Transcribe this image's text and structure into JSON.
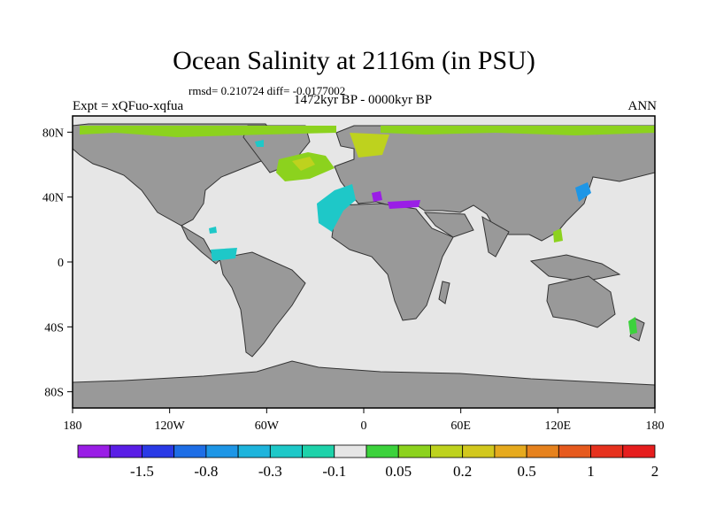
{
  "header": {
    "title": "Ocean Salinity at 2116m (in PSU)",
    "stats": "rmsd= 0.210724 diff= -0.0177002",
    "period": "1472kyr BP - 0000kyr BP",
    "experiment": "Expt = xQFuo-xqfua",
    "season": "ANN"
  },
  "map": {
    "projection": "cylindrical equidistant",
    "lon_range": [
      -180,
      180
    ],
    "lat_range": [
      -90,
      90
    ],
    "y_ticks": [
      "80N",
      "40N",
      "0",
      "40S",
      "80S"
    ],
    "x_ticks": [
      "180",
      "120W",
      "60W",
      "0",
      "60E",
      "120E",
      "180"
    ],
    "land_color": "#999999",
    "no_change_color": "#e6e6e6"
  },
  "colorbar": {
    "colors": [
      "#9a1ee6",
      "#5a1ee6",
      "#2a3ae6",
      "#1e6ee6",
      "#1e96e6",
      "#1eb4dc",
      "#1ec8c8",
      "#1ed2aa",
      "#e6e6e6",
      "#3cd23c",
      "#8cd21e",
      "#bed21e",
      "#d2c81e",
      "#e6aa1e",
      "#e6821e",
      "#e65a1e",
      "#e6321e",
      "#e61e1e"
    ],
    "labels": [
      "-1.5",
      "-0.8",
      "-0.3",
      "-0.1",
      "0.05",
      "0.2",
      "0.5",
      "1",
      "2"
    ]
  }
}
